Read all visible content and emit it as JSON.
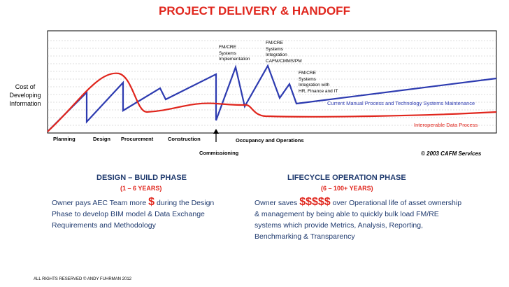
{
  "title": "PROJECT DELIVERY & HANDOFF",
  "y_axis_label": "Cost of Developing Information",
  "phases": [
    "Planning",
    "Design",
    "Procurement",
    "Construction",
    "Occupancy and Operations"
  ],
  "commissioning": "Commissioning",
  "annotations": {
    "fm_impl": [
      "FM/CRE",
      "Systems",
      "Implementation"
    ],
    "fm_integration": [
      "FM/CRE",
      "Systems",
      "Integration",
      "CAFM/CMMS/PM"
    ],
    "fm_hr": [
      "FM/CRE",
      "Systems",
      "Integration with",
      "HR, Finance and IT"
    ]
  },
  "blue_series_label": "Current Manual Process and Technology Systems Maintenance",
  "red_series_label": "Interoperable Data Process",
  "copyright": "© 2003  CAFM Services",
  "design_build": {
    "heading": "DESIGN – BUILD PHASE",
    "years": "(1 – 6 YEARS)",
    "pre": "Owner pays AEC Team more",
    "money": "$",
    "post": "during the Design Phase to develop BIM model & Data Exchange Requirements and Methodology"
  },
  "lifecycle": {
    "heading": "LIFECYCLE OPERATION PHASE",
    "years": "(6 – 100+ YEARS)",
    "pre": "Owner saves",
    "money": "$$$$$",
    "post": "over Operational life of asset ownership & management by being able to quickly bulk load FM/RE systems which provide Metrics, Analysis, Reporting, Benchmarking & Transparency"
  },
  "footer": "ALL RIGHTS RESERVED © ANDY FUHRMAN 2012",
  "colors": {
    "red": "#e0261d",
    "blue": "#2d3bb0",
    "navy": "#1f3a6e"
  }
}
